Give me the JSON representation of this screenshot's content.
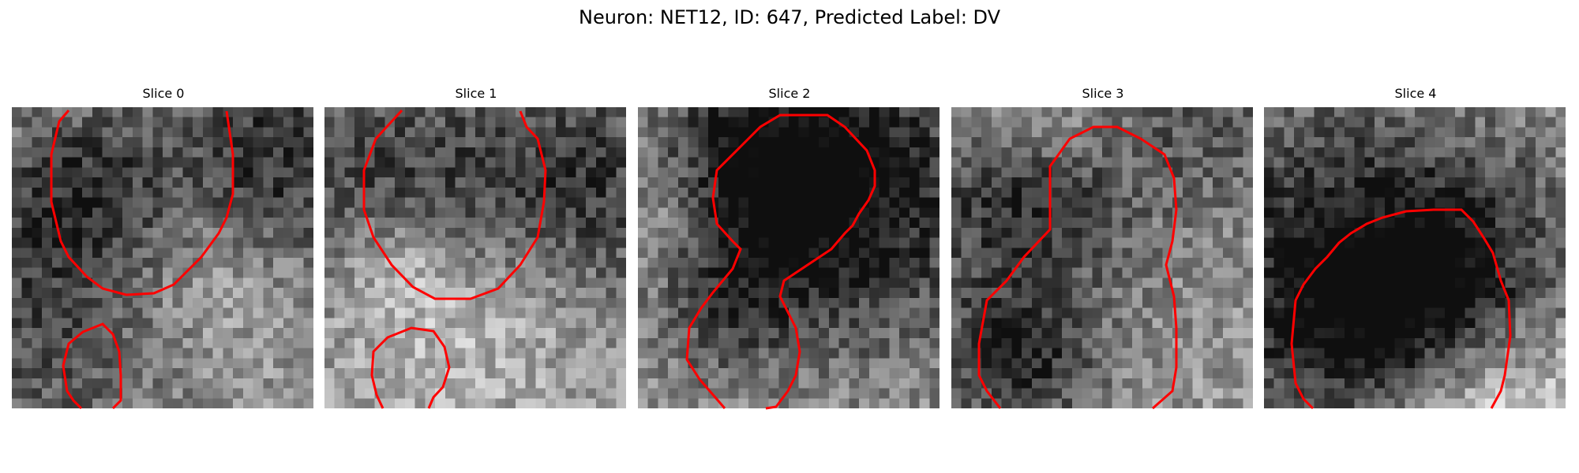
{
  "figure": {
    "title": "Neuron: NET12, ID: 647, Predicted Label: DV",
    "contour_color": "#ff0000"
  },
  "slices": [
    {
      "label": "Slice 0"
    },
    {
      "label": "Slice 1"
    },
    {
      "label": "Slice 2"
    },
    {
      "label": "Slice 3"
    },
    {
      "label": "Slice 4"
    }
  ]
}
